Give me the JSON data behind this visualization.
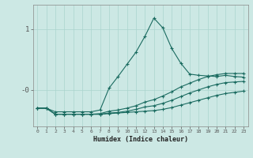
{
  "xlabel": "Humidex (Indice chaleur)",
  "bg_color": "#cce8e4",
  "line_color": "#1a6b60",
  "grid_color": "#aad4ce",
  "xlim": [
    -0.5,
    23.5
  ],
  "ylim": [
    -0.6,
    1.4
  ],
  "xticks": [
    0,
    1,
    2,
    3,
    4,
    5,
    6,
    7,
    8,
    9,
    10,
    11,
    12,
    13,
    14,
    15,
    16,
    17,
    18,
    19,
    20,
    21,
    22,
    23
  ],
  "yticks": [
    0.0,
    1.0
  ],
  "ytick_labels": [
    "-0",
    "1"
  ],
  "lines": [
    {
      "x": [
        0,
        1,
        2,
        3,
        4,
        5,
        6,
        7,
        8,
        9,
        10,
        11,
        12,
        13,
        14,
        15,
        16,
        17,
        18,
        19,
        20,
        21,
        22,
        23
      ],
      "y": [
        -0.3,
        -0.3,
        -0.4,
        -0.4,
        -0.4,
        -0.4,
        -0.4,
        -0.4,
        -0.39,
        -0.38,
        -0.37,
        -0.36,
        -0.35,
        -0.34,
        -0.32,
        -0.29,
        -0.25,
        -0.21,
        -0.17,
        -0.13,
        -0.09,
        -0.06,
        -0.04,
        -0.02
      ]
    },
    {
      "x": [
        0,
        1,
        2,
        3,
        4,
        5,
        6,
        7,
        8,
        9,
        10,
        11,
        12,
        13,
        14,
        15,
        16,
        17,
        18,
        19,
        20,
        21,
        22,
        23
      ],
      "y": [
        -0.3,
        -0.3,
        -0.4,
        -0.4,
        -0.4,
        -0.4,
        -0.4,
        -0.4,
        -0.38,
        -0.37,
        -0.35,
        -0.32,
        -0.28,
        -0.26,
        -0.22,
        -0.17,
        -0.11,
        -0.05,
        0.0,
        0.05,
        0.09,
        0.12,
        0.13,
        0.14
      ]
    },
    {
      "x": [
        0,
        1,
        2,
        3,
        4,
        5,
        6,
        7,
        8,
        9,
        10,
        11,
        12,
        13,
        14,
        15,
        16,
        17,
        18,
        19,
        20,
        21,
        22,
        23
      ],
      "y": [
        -0.3,
        -0.3,
        -0.4,
        -0.4,
        -0.4,
        -0.4,
        -0.4,
        -0.39,
        -0.35,
        -0.33,
        -0.3,
        -0.26,
        -0.2,
        -0.16,
        -0.1,
        -0.03,
        0.05,
        0.11,
        0.17,
        0.22,
        0.25,
        0.27,
        0.27,
        0.27
      ]
    },
    {
      "x": [
        0,
        1,
        2,
        3,
        4,
        5,
        6,
        7,
        8,
        9,
        10,
        11,
        12,
        13,
        14,
        15,
        16,
        17,
        18,
        19,
        20,
        21,
        22,
        23
      ],
      "y": [
        -0.3,
        -0.3,
        -0.36,
        -0.36,
        -0.36,
        -0.36,
        -0.36,
        -0.33,
        0.03,
        0.22,
        0.42,
        0.62,
        0.88,
        1.18,
        1.02,
        0.68,
        0.44,
        0.26,
        0.24,
        0.23,
        0.22,
        0.24,
        0.22,
        0.21
      ]
    }
  ]
}
